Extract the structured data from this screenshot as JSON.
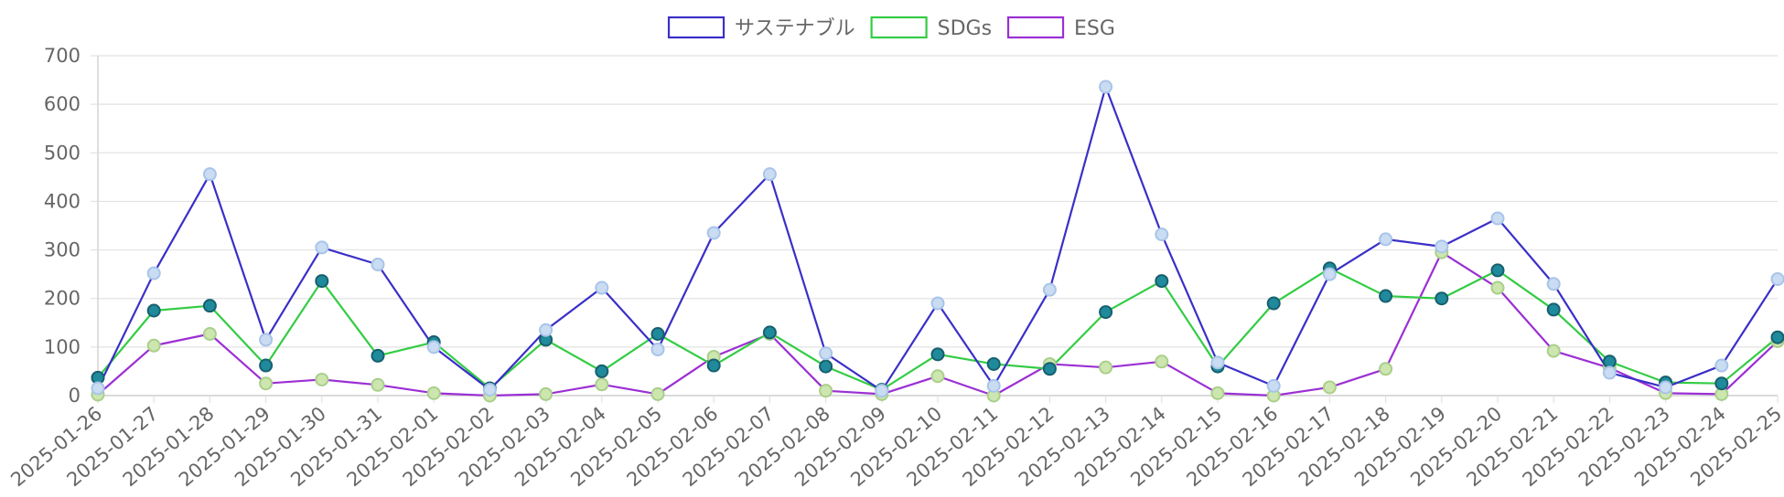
{
  "chart_data": {
    "type": "line",
    "title": "",
    "xlabel": "",
    "ylabel": "",
    "ylim": [
      0,
      700
    ],
    "y_ticks": [
      0,
      100,
      200,
      300,
      400,
      500,
      600,
      700
    ],
    "grid": true,
    "legend_position": "top-center",
    "categories": [
      "2025-01-26",
      "2025-01-27",
      "2025-01-28",
      "2025-01-29",
      "2025-01-30",
      "2025-01-31",
      "2025-02-01",
      "2025-02-02",
      "2025-02-03",
      "2025-02-04",
      "2025-02-05",
      "2025-02-06",
      "2025-02-07",
      "2025-02-08",
      "2025-02-09",
      "2025-02-10",
      "2025-02-11",
      "2025-02-12",
      "2025-02-13",
      "2025-02-14",
      "2025-02-15",
      "2025-02-16",
      "2025-02-17",
      "2025-02-18",
      "2025-02-19",
      "2025-02-20",
      "2025-02-21",
      "2025-02-22",
      "2025-02-23",
      "2025-02-24",
      "2025-02-25"
    ],
    "series": [
      {
        "name": "サステナブル",
        "color": "#3a2fc7",
        "marker_fill": "#c9dcf2",
        "marker_stroke": "#a8c4ea",
        "values": [
          15,
          252,
          456,
          115,
          305,
          270,
          100,
          12,
          135,
          222,
          95,
          335,
          456,
          87,
          10,
          190,
          20,
          218,
          636,
          332,
          68,
          20,
          250,
          322,
          307,
          365,
          230,
          47,
          17,
          62,
          240
        ]
      },
      {
        "name": "SDGs",
        "color": "#33cc44",
        "marker_fill": "#1f8a9b",
        "marker_stroke": "#175f6e",
        "values": [
          37,
          175,
          185,
          62,
          236,
          82,
          110,
          15,
          115,
          50,
          127,
          62,
          130,
          60,
          12,
          85,
          65,
          55,
          172,
          236,
          60,
          190,
          262,
          205,
          200,
          258,
          177,
          70,
          27,
          25,
          120
        ]
      },
      {
        "name": "ESG",
        "color": "#9b2fd4",
        "marker_fill": "#cde6b0",
        "marker_stroke": "#a9cf8a",
        "values": [
          2,
          103,
          127,
          25,
          33,
          22,
          5,
          0,
          3,
          23,
          3,
          80,
          127,
          10,
          3,
          40,
          0,
          65,
          58,
          70,
          5,
          0,
          17,
          55,
          295,
          222,
          92,
          57,
          5,
          3,
          112
        ]
      }
    ]
  }
}
